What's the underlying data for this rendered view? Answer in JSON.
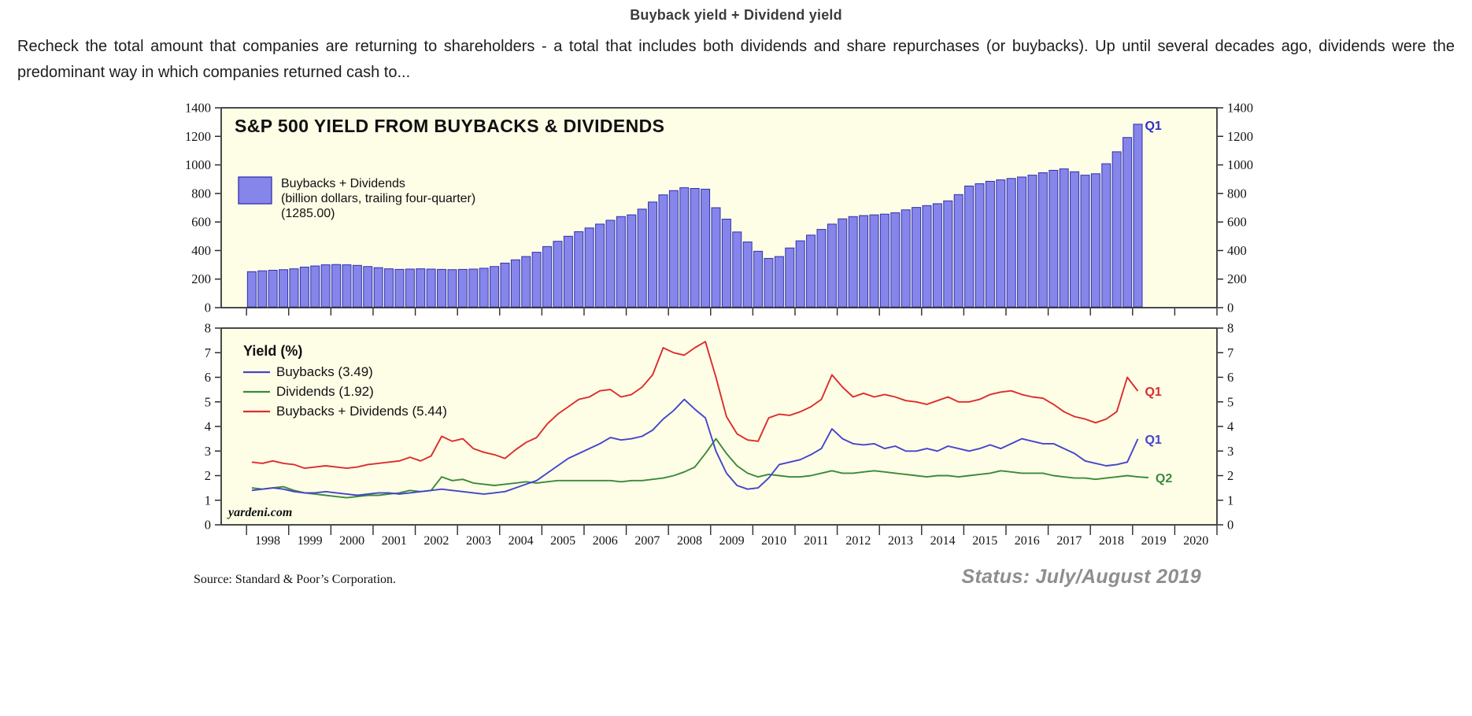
{
  "header": {
    "title": "Buyback yield + Dividend yield",
    "paragraph": "Recheck the total amount that companies are returning to shareholders - a total that includes both dividends and share repurchases (or buybacks). Up until several decades ago, dividends were the predominant way in which companies returned cash to..."
  },
  "axis": {
    "years": [
      1998,
      1999,
      2000,
      2001,
      2002,
      2003,
      2004,
      2005,
      2006,
      2007,
      2008,
      2009,
      2010,
      2011,
      2012,
      2013,
      2014,
      2015,
      2016,
      2017,
      2018,
      2019,
      2020
    ]
  },
  "chart_data": [
    {
      "type": "bar",
      "title": "S&P 500 YIELD FROM BUYBACKS & DIVIDENDS",
      "legend": {
        "label": "Buybacks + Dividends",
        "sub": "(billion dollars, trailing four-quarter)",
        "latest": "(1285.00)"
      },
      "ylim": [
        0,
        1400
      ],
      "yticks": [
        0,
        200,
        400,
        600,
        800,
        1000,
        1200,
        1400
      ],
      "start_year": 1998,
      "frequency": "quarterly",
      "end_label": "Q1",
      "end_label_color": "#2e2ec8",
      "bar_fill": "#8585ea",
      "bar_stroke": "#3030b0",
      "values": [
        252,
        258,
        262,
        266,
        272,
        284,
        292,
        300,
        302,
        300,
        296,
        288,
        280,
        272,
        268,
        270,
        272,
        270,
        268,
        266,
        268,
        270,
        276,
        288,
        312,
        335,
        358,
        388,
        428,
        465,
        500,
        532,
        558,
        585,
        612,
        638,
        650,
        690,
        740,
        790,
        820,
        840,
        835,
        830,
        700,
        620,
        530,
        460,
        395,
        345,
        358,
        418,
        468,
        508,
        548,
        585,
        622,
        638,
        645,
        650,
        655,
        665,
        685,
        702,
        715,
        728,
        748,
        792,
        852,
        868,
        885,
        895,
        905,
        915,
        928,
        945,
        962,
        972,
        952,
        928,
        938,
        1008,
        1092,
        1192,
        1285
      ]
    },
    {
      "type": "line",
      "legend_title": "Yield (%)",
      "ylim": [
        0,
        8
      ],
      "yticks": [
        0,
        1,
        2,
        3,
        4,
        5,
        6,
        7,
        8
      ],
      "start_year": 1998,
      "frequency": "quarterly",
      "watermark": "yardeni.com",
      "series": [
        {
          "name": "Buybacks (3.49)",
          "data_name": "buybacks-yield-line",
          "color": "#4444cc",
          "end_label": "Q1",
          "values": [
            1.4,
            1.45,
            1.5,
            1.45,
            1.35,
            1.3,
            1.3,
            1.35,
            1.3,
            1.25,
            1.2,
            1.25,
            1.3,
            1.3,
            1.25,
            1.3,
            1.35,
            1.4,
            1.45,
            1.4,
            1.35,
            1.3,
            1.25,
            1.3,
            1.35,
            1.5,
            1.65,
            1.8,
            2.1,
            2.4,
            2.7,
            2.9,
            3.1,
            3.3,
            3.55,
            3.45,
            3.5,
            3.6,
            3.85,
            4.3,
            4.65,
            5.1,
            4.7,
            4.35,
            3.0,
            2.1,
            1.6,
            1.45,
            1.5,
            1.9,
            2.45,
            2.55,
            2.65,
            2.85,
            3.1,
            3.9,
            3.5,
            3.3,
            3.25,
            3.3,
            3.1,
            3.2,
            3.0,
            3.0,
            3.1,
            3.0,
            3.2,
            3.1,
            3.0,
            3.1,
            3.25,
            3.1,
            3.3,
            3.5,
            3.4,
            3.3,
            3.3,
            3.1,
            2.9,
            2.6,
            2.5,
            2.4,
            2.45,
            2.55,
            3.49
          ]
        },
        {
          "name": "Dividends (1.92)",
          "data_name": "dividends-yield-line",
          "color": "#3a8a3a",
          "end_label": "Q2",
          "values": [
            1.5,
            1.45,
            1.5,
            1.55,
            1.4,
            1.3,
            1.25,
            1.2,
            1.15,
            1.1,
            1.15,
            1.2,
            1.2,
            1.25,
            1.3,
            1.4,
            1.35,
            1.4,
            1.95,
            1.8,
            1.85,
            1.7,
            1.65,
            1.6,
            1.65,
            1.7,
            1.75,
            1.7,
            1.75,
            1.8,
            1.8,
            1.8,
            1.8,
            1.8,
            1.8,
            1.75,
            1.8,
            1.8,
            1.85,
            1.9,
            2.0,
            2.15,
            2.35,
            2.9,
            3.5,
            2.9,
            2.4,
            2.1,
            1.95,
            2.05,
            2.0,
            1.95,
            1.95,
            2.0,
            2.1,
            2.2,
            2.1,
            2.1,
            2.15,
            2.2,
            2.15,
            2.1,
            2.05,
            2.0,
            1.95,
            2.0,
            2.0,
            1.95,
            2.0,
            2.05,
            2.1,
            2.2,
            2.15,
            2.1,
            2.1,
            2.1,
            2.0,
            1.95,
            1.9,
            1.9,
            1.85,
            1.9,
            1.95,
            2.0,
            1.95,
            1.92
          ]
        },
        {
          "name": "Buybacks + Dividends (5.44)",
          "data_name": "buybacks-plus-dividends-yield-line",
          "color": "#dd2c2c",
          "end_label": "Q1",
          "values": [
            2.55,
            2.5,
            2.6,
            2.5,
            2.45,
            2.3,
            2.35,
            2.4,
            2.35,
            2.3,
            2.35,
            2.45,
            2.5,
            2.55,
            2.6,
            2.75,
            2.6,
            2.8,
            3.6,
            3.4,
            3.5,
            3.1,
            2.95,
            2.85,
            2.7,
            3.05,
            3.35,
            3.55,
            4.1,
            4.5,
            4.8,
            5.1,
            5.2,
            5.45,
            5.5,
            5.2,
            5.3,
            5.6,
            6.1,
            7.2,
            7.0,
            6.9,
            7.2,
            7.45,
            6.0,
            4.4,
            3.7,
            3.45,
            3.4,
            4.35,
            4.5,
            4.45,
            4.6,
            4.8,
            5.1,
            6.1,
            5.6,
            5.2,
            5.35,
            5.2,
            5.3,
            5.2,
            5.05,
            5.0,
            4.9,
            5.05,
            5.2,
            5.0,
            5.0,
            5.1,
            5.3,
            5.4,
            5.45,
            5.3,
            5.2,
            5.15,
            4.9,
            4.6,
            4.4,
            4.3,
            4.15,
            4.3,
            4.6,
            6.0,
            5.44
          ]
        }
      ]
    }
  ],
  "footer": {
    "source": "Source: Standard & Poor’s Corporation.",
    "status": "Status: July/August 2019"
  },
  "colors": {
    "page_bg": "#ffffff",
    "plot_bg": "#fefee7",
    "frame": "#2b2b2b",
    "axis_text": "#141414",
    "title_text": "#3c3c3c",
    "body_text": "#1d1d1d",
    "status_text": "#8e8e8e"
  }
}
